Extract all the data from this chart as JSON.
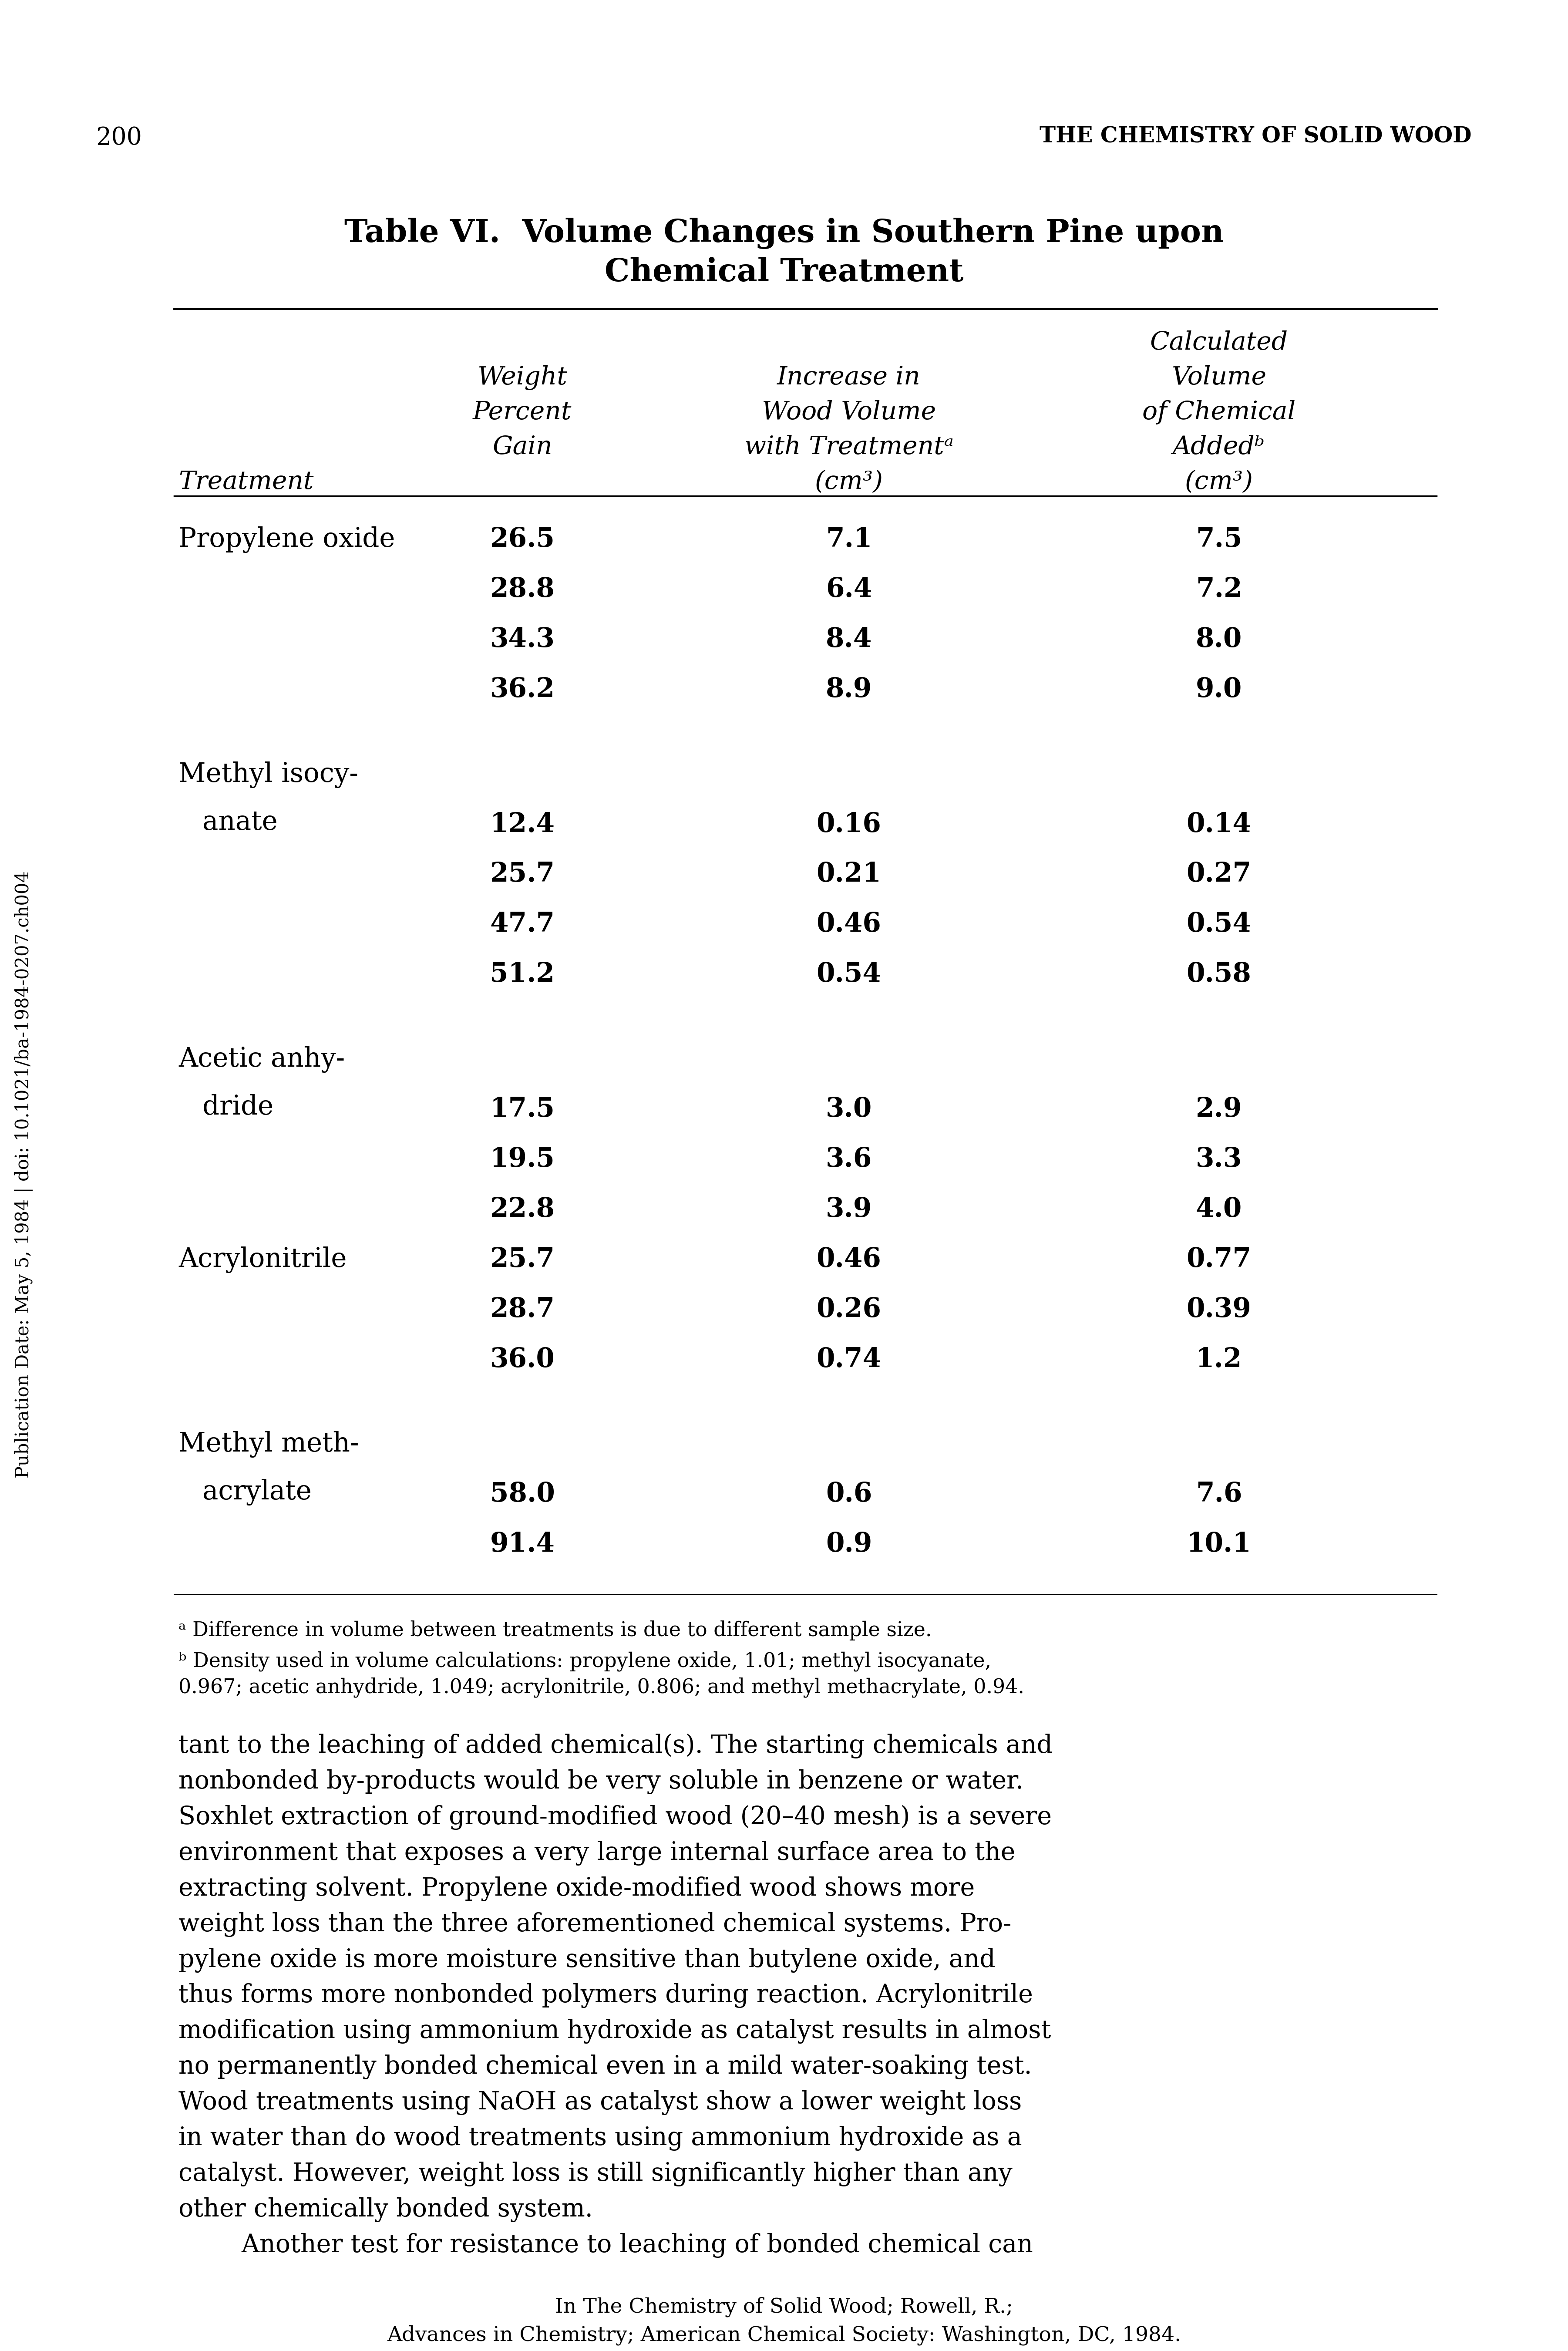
{
  "page_number": "200",
  "page_header": "THE CHEMISTRY OF SOLID WOOD",
  "table_title_line1": "Table VI.  Volume Changes in Southern Pine upon",
  "table_title_line2": "Chemical Treatment",
  "col_headers": {
    "col1": [
      "Treatment"
    ],
    "col2": [
      "Weight",
      "Percent",
      "Gain"
    ],
    "col3": [
      "Increase in",
      "Wood Volume",
      "with Treatmentᵃ",
      "(cm³)"
    ],
    "col4": [
      "Calculated",
      "Volume",
      "of Chemical",
      "Addedᵇ",
      "(cm³)"
    ]
  },
  "rows": [
    {
      "treatment": "Propylene oxide",
      "treatment2": "",
      "weight": "26.5",
      "increase": "7.1",
      "calc": "7.5"
    },
    {
      "treatment": "",
      "treatment2": "",
      "weight": "28.8",
      "increase": "6.4",
      "calc": "7.2"
    },
    {
      "treatment": "",
      "treatment2": "",
      "weight": "34.3",
      "increase": "8.4",
      "calc": "8.0"
    },
    {
      "treatment": "",
      "treatment2": "",
      "weight": "36.2",
      "increase": "8.9",
      "calc": "9.0"
    },
    {
      "treatment": "Methyl isocy-",
      "treatment2": "anate",
      "weight": "12.4",
      "increase": "0.16",
      "calc": "0.14"
    },
    {
      "treatment": "",
      "treatment2": "",
      "weight": "25.7",
      "increase": "0.21",
      "calc": "0.27"
    },
    {
      "treatment": "",
      "treatment2": "",
      "weight": "47.7",
      "increase": "0.46",
      "calc": "0.54"
    },
    {
      "treatment": "",
      "treatment2": "",
      "weight": "51.2",
      "increase": "0.54",
      "calc": "0.58"
    },
    {
      "treatment": "Acetic anhy-",
      "treatment2": "dride",
      "weight": "17.5",
      "increase": "3.0",
      "calc": "2.9"
    },
    {
      "treatment": "",
      "treatment2": "",
      "weight": "19.5",
      "increase": "3.6",
      "calc": "3.3"
    },
    {
      "treatment": "",
      "treatment2": "",
      "weight": "22.8",
      "increase": "3.9",
      "calc": "4.0"
    },
    {
      "treatment": "Acrylonitrile",
      "treatment2": "",
      "weight": "25.7",
      "increase": "0.46",
      "calc": "0.77"
    },
    {
      "treatment": "",
      "treatment2": "",
      "weight": "28.7",
      "increase": "0.26",
      "calc": "0.39"
    },
    {
      "treatment": "",
      "treatment2": "",
      "weight": "36.0",
      "increase": "0.74",
      "calc": "1.2"
    },
    {
      "treatment": "Methyl meth-",
      "treatment2": "acrylate",
      "weight": "58.0",
      "increase": "0.6",
      "calc": "7.6"
    },
    {
      "treatment": "",
      "treatment2": "",
      "weight": "91.4",
      "increase": "0.9",
      "calc": "10.1"
    }
  ],
  "footnote_a": "ᵃ Difference in volume between treatments is due to different sample size.",
  "footnote_b": "ᵇ Density used in volume calculations: propylene oxide, 1.01; methyl isocyanate,",
  "footnote_b2": "0.967; acetic anhydride, 1.049; acrylonitrile, 0.806; and methyl methacrylate, 0.94.",
  "body_text": [
    "tant to the leaching of added chemical(s). The starting chemicals and",
    "nonbonded by-products would be very soluble in benzene or water.",
    "Soxhlet extraction of ground-modified wood (20–40 mesh) is a severe",
    "environment that exposes a very large internal surface area to the",
    "extracting solvent. Propylene oxide-modified wood shows more",
    "weight loss than the three aforementioned chemical systems. Pro-",
    "pylene oxide is more moisture sensitive than butylene oxide, and",
    "thus forms more nonbonded polymers during reaction. Acrylonitrile",
    "modification using ammonium hydroxide as catalyst results in almost",
    "no permanently bonded chemical even in a mild water-soaking test.",
    "Wood treatments using NaOH as catalyst show a lower weight loss",
    "in water than do wood treatments using ammonium hydroxide as a",
    "catalyst. However, weight loss is still significantly higher than any",
    "other chemically bonded system."
  ],
  "body_text_indent": "        Another test for resistance to leaching of bonded chemical can",
  "sidebar_text": "Publication Date: May 5, 1984 | doi: 10.1021/ba-1984-0207.ch004",
  "footer_line1": "In The Chemistry of Solid Wood; Rowell, R.;",
  "footer_line2": "Advances in Chemistry; American Chemical Society: Washington, DC, 1984.",
  "bg_color": "#ffffff",
  "text_color": "#000000"
}
